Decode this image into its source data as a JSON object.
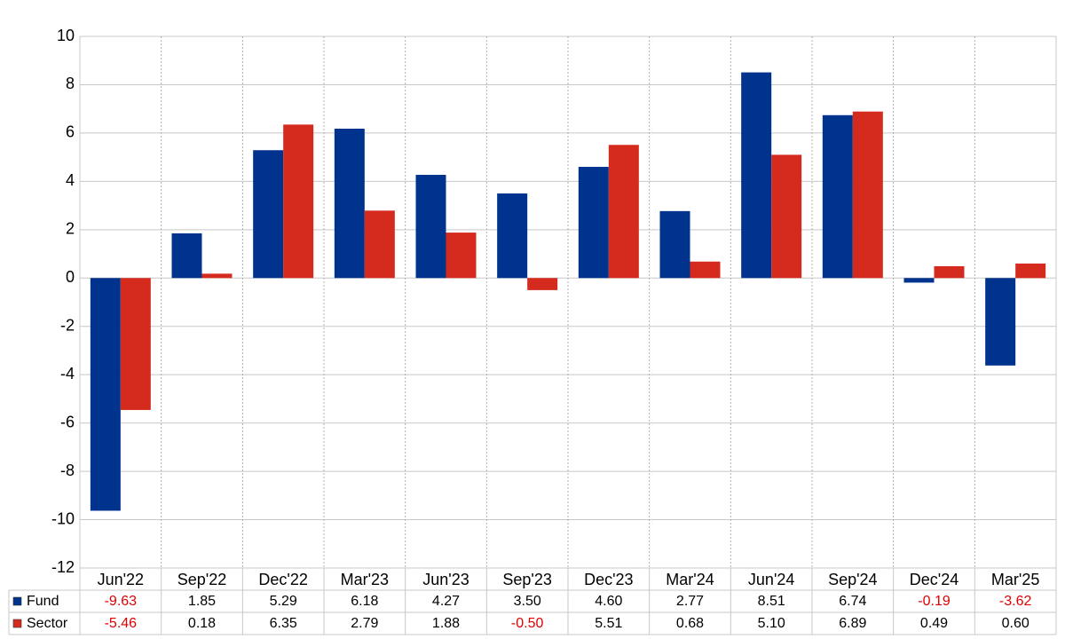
{
  "chart_data": {
    "type": "bar",
    "categories": [
      "Jun'22",
      "Sep'22",
      "Dec'22",
      "Mar'23",
      "Jun'23",
      "Sep'23",
      "Dec'23",
      "Mar'24",
      "Jun'24",
      "Sep'24",
      "Dec'24",
      "Mar'25"
    ],
    "series": [
      {
        "name": "Fund",
        "color": "#00338d",
        "values": [
          -9.63,
          1.85,
          5.29,
          6.18,
          4.27,
          3.5,
          4.6,
          2.77,
          8.51,
          6.74,
          -0.19,
          -3.62
        ],
        "value_labels": [
          "-9.63",
          "1.85",
          "5.29",
          "6.18",
          "4.27",
          "3.50",
          "4.60",
          "2.77",
          "8.51",
          "6.74",
          "-0.19",
          "-3.62"
        ]
      },
      {
        "name": "Sector",
        "color": "#d52b1e",
        "values": [
          -5.46,
          0.18,
          6.35,
          2.79,
          1.88,
          -0.5,
          5.51,
          0.68,
          5.1,
          6.89,
          0.49,
          0.6
        ],
        "value_labels": [
          "-5.46",
          "0.18",
          "6.35",
          "2.79",
          "1.88",
          "-0.50",
          "5.51",
          "0.68",
          "5.10",
          "6.89",
          "0.49",
          "0.60"
        ]
      }
    ],
    "ylim": [
      -12,
      10
    ],
    "yticks": [
      -12,
      -10,
      -8,
      -6,
      -4,
      -2,
      0,
      2,
      4,
      6,
      8,
      10
    ],
    "grid": true
  }
}
